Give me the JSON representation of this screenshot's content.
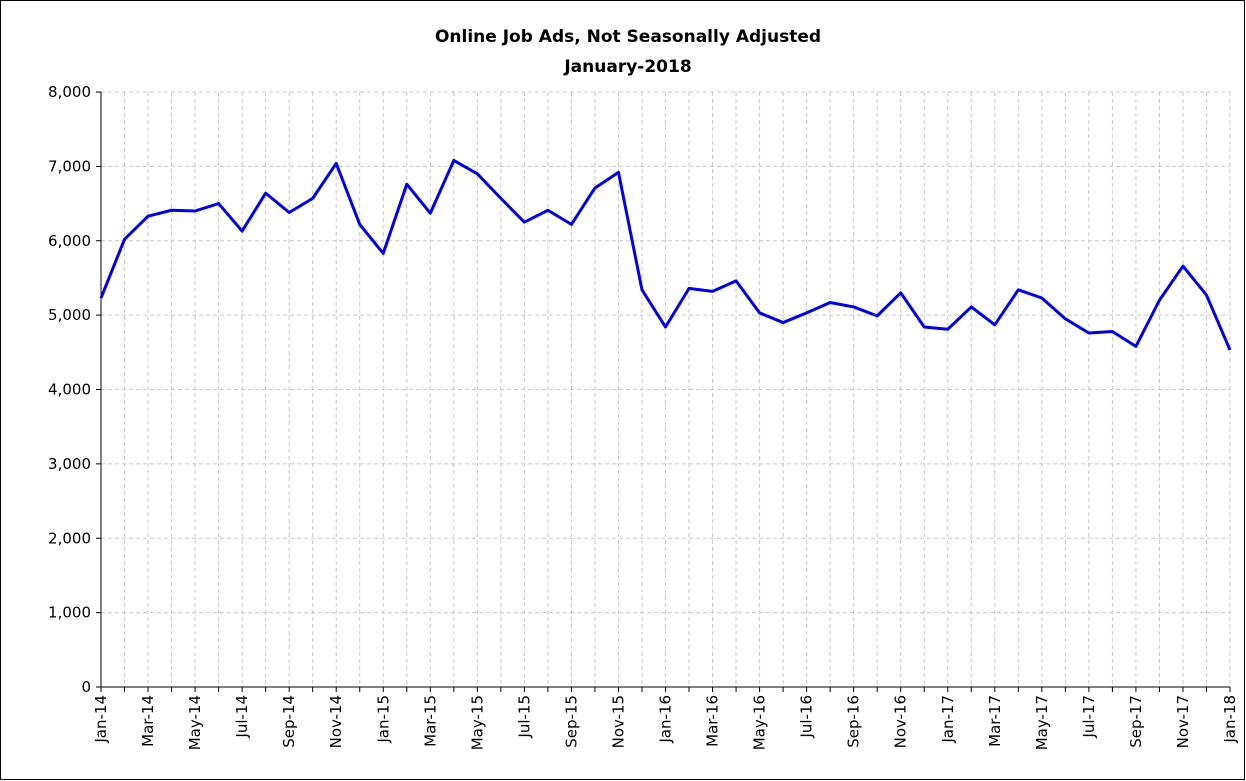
{
  "chart_data": {
    "type": "line",
    "title": "Online Job Ads, Not Seasonally Adjusted",
    "subtitle": "January-2018",
    "categories": [
      "Jan-14",
      null,
      "Mar-14",
      null,
      "May-14",
      null,
      "Jul-14",
      null,
      "Sep-14",
      null,
      "Nov-14",
      null,
      "Jan-15",
      null,
      "Mar-15",
      null,
      "May-15",
      null,
      "Jul-15",
      null,
      "Sep-15",
      null,
      "Nov-15",
      null,
      "Jan-16",
      null,
      "Mar-16",
      null,
      "May-16",
      null,
      "Jul-16",
      null,
      "Sep-16",
      null,
      "Nov-16",
      null,
      "Jan-17",
      null,
      "Mar-17",
      null,
      "May-17",
      null,
      "Jul-17",
      null,
      "Sep-17",
      null,
      "Nov-17",
      null,
      "Jan-18"
    ],
    "series": [
      {
        "name": "Online Job Ads",
        "color": "#0000ee",
        "values": [
          5230,
          6020,
          6330,
          6410,
          6400,
          6500,
          6130,
          6640,
          6380,
          6570,
          7040,
          6220,
          5830,
          6760,
          6370,
          7080,
          6900,
          6570,
          6250,
          6410,
          6220,
          6710,
          6920,
          5340,
          4840,
          5360,
          5320,
          5460,
          5030,
          4900,
          5030,
          5170,
          5110,
          4990,
          5300,
          4840,
          4810,
          5110,
          4870,
          5340,
          5230,
          4950,
          4760,
          4780,
          4580,
          5200,
          5660,
          5270,
          4530
        ]
      }
    ],
    "ylim": [
      0,
      8000
    ],
    "yticks": [
      0,
      {
        "value": 1000,
        "label": "1,000"
      },
      {
        "value": 2000,
        "label": "2,000"
      },
      {
        "value": 3000,
        "label": "3,000"
      },
      {
        "value": 4000,
        "label": "4,000"
      },
      {
        "value": 5000,
        "label": "5,000"
      },
      {
        "value": 6000,
        "label": "6,000"
      },
      {
        "value": 7000,
        "label": "7,000"
      },
      {
        "value": 8000,
        "label": "8,000"
      }
    ],
    "grid": true
  }
}
